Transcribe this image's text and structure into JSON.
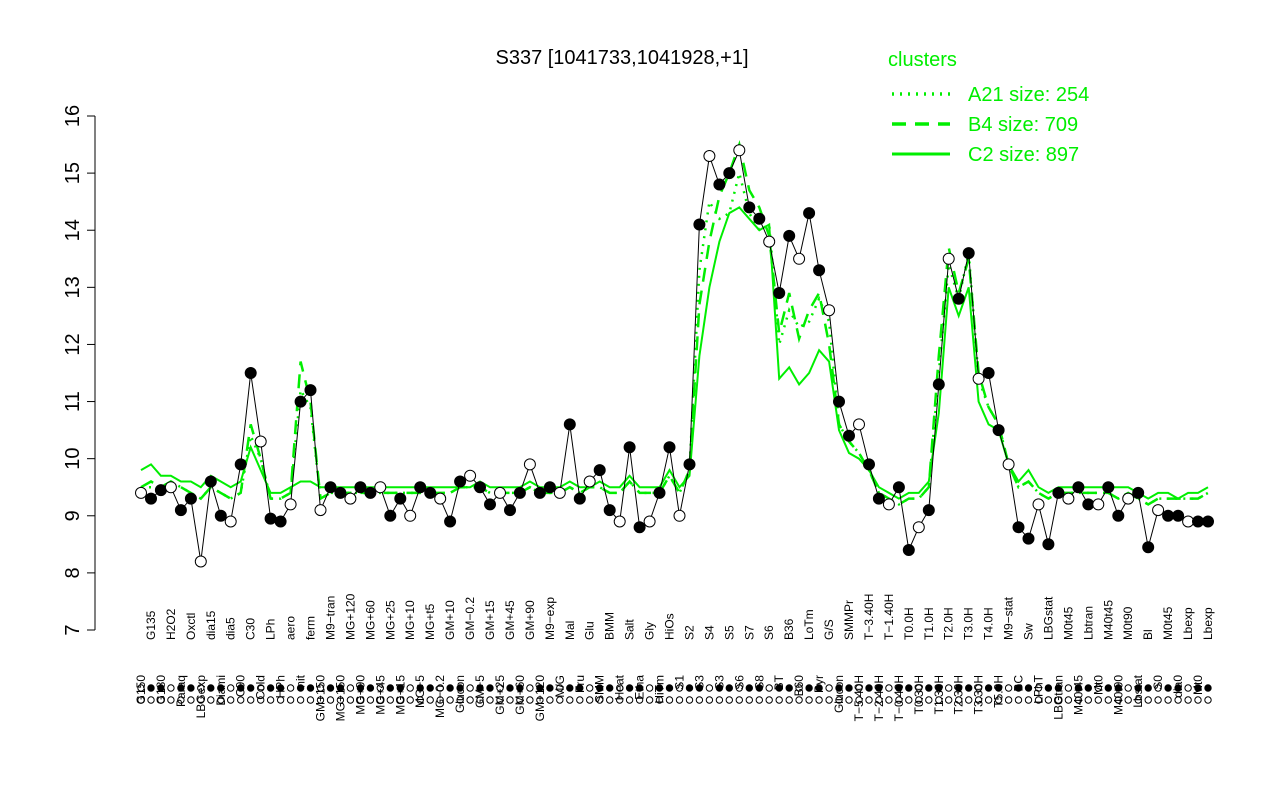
{
  "chart_data": {
    "type": "line",
    "title": "S337 [1041733,1041928,+1]",
    "xlabel": "",
    "ylabel": "",
    "ylim": [
      7,
      16
    ],
    "yticks": [
      7,
      8,
      9,
      10,
      11,
      12,
      13,
      14,
      15,
      16
    ],
    "legend": {
      "title": "clusters",
      "placement": "top-right",
      "entries": [
        {
          "label": "A21 size: 254",
          "style": "dotted",
          "color": "#00ee00"
        },
        {
          "label": "B4 size: 709",
          "style": "dashed",
          "color": "#00ee00"
        },
        {
          "label": "C2 size: 897",
          "style": "solid",
          "color": "#00ee00"
        }
      ]
    },
    "x_labels": [
      {
        "x": 1,
        "label": "G150"
      },
      {
        "x": 2,
        "label": "G135"
      },
      {
        "x": 3,
        "label": "G180"
      },
      {
        "x": 4,
        "label": "H2O2"
      },
      {
        "x": 5,
        "label": "Paraq"
      },
      {
        "x": 6,
        "label": "Oxctl"
      },
      {
        "x": 7,
        "label": "LBGexp"
      },
      {
        "x": 8,
        "label": "dia15"
      },
      {
        "x": 9,
        "label": "Diami"
      },
      {
        "x": 10,
        "label": "dia5"
      },
      {
        "x": 11,
        "label": "C90"
      },
      {
        "x": 12,
        "label": "C30"
      },
      {
        "x": 13,
        "label": "Cold"
      },
      {
        "x": 14,
        "label": "LPh"
      },
      {
        "x": 15,
        "label": "HPh"
      },
      {
        "x": 16,
        "label": "aero"
      },
      {
        "x": 17,
        "label": "nit"
      },
      {
        "x": 18,
        "label": "ferm"
      },
      {
        "x": 19,
        "label": "GM+150"
      },
      {
        "x": 20,
        "label": "M9−tran"
      },
      {
        "x": 21,
        "label": "MG+150"
      },
      {
        "x": 22,
        "label": "MG+120"
      },
      {
        "x": 23,
        "label": "MG+90"
      },
      {
        "x": 24,
        "label": "MG+60"
      },
      {
        "x": 25,
        "label": "MG+45"
      },
      {
        "x": 26,
        "label": "MG+25"
      },
      {
        "x": 27,
        "label": "MG+15"
      },
      {
        "x": 28,
        "label": "MG+10"
      },
      {
        "x": 29,
        "label": "MG+5"
      },
      {
        "x": 30,
        "label": "MG+t5"
      },
      {
        "x": 31,
        "label": "MG−0.2"
      },
      {
        "x": 32,
        "label": "GM+10"
      },
      {
        "x": 33,
        "label": "Glucon"
      },
      {
        "x": 34,
        "label": "GM−0.2"
      },
      {
        "x": 35,
        "label": "GM+5"
      },
      {
        "x": 36,
        "label": "GM+15"
      },
      {
        "x": 37,
        "label": "GM+25"
      },
      {
        "x": 38,
        "label": "GM+45"
      },
      {
        "x": 39,
        "label": "GM+60"
      },
      {
        "x": 40,
        "label": "GM+90"
      },
      {
        "x": 41,
        "label": "GM+120"
      },
      {
        "x": 42,
        "label": "M9−exp"
      },
      {
        "x": 43,
        "label": "M/G"
      },
      {
        "x": 44,
        "label": "Mal"
      },
      {
        "x": 45,
        "label": "Fru"
      },
      {
        "x": 46,
        "label": "Glu"
      },
      {
        "x": 47,
        "label": "SMM"
      },
      {
        "x": 48,
        "label": "BMM"
      },
      {
        "x": 49,
        "label": "Heat"
      },
      {
        "x": 50,
        "label": "Salt"
      },
      {
        "x": 51,
        "label": "Etha"
      },
      {
        "x": 52,
        "label": "Gly"
      },
      {
        "x": 53,
        "label": "HiTm"
      },
      {
        "x": 54,
        "label": "HiOs"
      },
      {
        "x": 55,
        "label": "S1"
      },
      {
        "x": 56,
        "label": "S2"
      },
      {
        "x": 57,
        "label": "S3"
      },
      {
        "x": 58,
        "label": "S4"
      },
      {
        "x": 59,
        "label": "S3"
      },
      {
        "x": 60,
        "label": "S5"
      },
      {
        "x": 61,
        "label": "S6"
      },
      {
        "x": 62,
        "label": "S7"
      },
      {
        "x": 63,
        "label": "S8"
      },
      {
        "x": 64,
        "label": "S6"
      },
      {
        "x": 65,
        "label": "BT"
      },
      {
        "x": 66,
        "label": "B36"
      },
      {
        "x": 67,
        "label": "B60"
      },
      {
        "x": 68,
        "label": "LoTm"
      },
      {
        "x": 69,
        "label": "Pyr"
      },
      {
        "x": 70,
        "label": "G/S"
      },
      {
        "x": 71,
        "label": "Glucon"
      },
      {
        "x": 72,
        "label": "SMMPr"
      },
      {
        "x": 73,
        "label": "T−5.40H"
      },
      {
        "x": 74,
        "label": "T−3.40H"
      },
      {
        "x": 75,
        "label": "T−2.40H"
      },
      {
        "x": 76,
        "label": "T−1.40H"
      },
      {
        "x": 77,
        "label": "T−0.40H"
      },
      {
        "x": 78,
        "label": "T0.0H"
      },
      {
        "x": 79,
        "label": "T0.30H"
      },
      {
        "x": 80,
        "label": "T1.0H"
      },
      {
        "x": 81,
        "label": "T1.30H"
      },
      {
        "x": 82,
        "label": "T2.0H"
      },
      {
        "x": 83,
        "label": "T2.30H"
      },
      {
        "x": 84,
        "label": "T3.0H"
      },
      {
        "x": 85,
        "label": "T3.30H"
      },
      {
        "x": 86,
        "label": "T4.0H"
      },
      {
        "x": 87,
        "label": "T5.0H"
      },
      {
        "x": 88,
        "label": "M9−stat"
      },
      {
        "x": 89,
        "label": "BC"
      },
      {
        "x": 90,
        "label": "Sw"
      },
      {
        "x": 91,
        "label": "LPhT"
      },
      {
        "x": 92,
        "label": "LBGstat"
      },
      {
        "x": 93,
        "label": "LBGtran"
      },
      {
        "x": 94,
        "label": "M0t45"
      },
      {
        "x": 95,
        "label": "M40t45"
      },
      {
        "x": 96,
        "label": "Lbtran"
      },
      {
        "x": 97,
        "label": "Mt0"
      },
      {
        "x": 98,
        "label": "M40t45"
      },
      {
        "x": 99,
        "label": "M40t90"
      },
      {
        "x": 100,
        "label": "M0t90"
      },
      {
        "x": 101,
        "label": "Lbstat"
      },
      {
        "x": 102,
        "label": "Bl"
      },
      {
        "x": 103,
        "label": "S0"
      },
      {
        "x": 104,
        "label": "M0t45"
      },
      {
        "x": 105,
        "label": "dia0"
      },
      {
        "x": 106,
        "label": "Lbexp"
      },
      {
        "x": 107,
        "label": "Mt0"
      },
      {
        "x": 108,
        "label": "Lbexp"
      }
    ],
    "series": [
      {
        "style": "points",
        "values": [
          9.4,
          9.3,
          9.45,
          9.5,
          9.1,
          9.3,
          8.2,
          9.6,
          9.0,
          8.9,
          9.9,
          11.5,
          10.3,
          8.95,
          8.9,
          9.2,
          11.0,
          11.2,
          9.1,
          9.5,
          9.4,
          9.3,
          9.5,
          9.4,
          9.5,
          9.0,
          9.3,
          9.0,
          9.5,
          9.4,
          9.3,
          8.9,
          9.6,
          9.7,
          9.5,
          9.2,
          9.4,
          9.1,
          9.4,
          9.9,
          9.4,
          9.5,
          9.4,
          10.6,
          9.3,
          9.6,
          9.8,
          9.1,
          8.9,
          10.2,
          8.8,
          8.9,
          9.4,
          10.2,
          9.0,
          9.9,
          14.1,
          15.3,
          14.8,
          15.0,
          15.4,
          14.4,
          14.2,
          13.8,
          12.9,
          13.9,
          13.5,
          14.3,
          13.3,
          12.6,
          11.0,
          10.4,
          10.6,
          9.9,
          9.3,
          9.2,
          9.5,
          8.4,
          8.8,
          9.1,
          11.3,
          13.5,
          12.8,
          13.6,
          11.4,
          11.5,
          10.5,
          9.9,
          8.8,
          8.6,
          9.2,
          8.5,
          9.4,
          9.3,
          9.5,
          9.2,
          9.2,
          9.5,
          9.0,
          9.3,
          9.4,
          8.45,
          9.1,
          9.0,
          9.0,
          8.9,
          8.9,
          8.9
        ]
      },
      {
        "name": "C2 size: 897",
        "style": "solid",
        "values": [
          9.8,
          9.9,
          9.7,
          9.7,
          9.6,
          9.6,
          9.5,
          9.7,
          9.6,
          9.5,
          9.6,
          10.2,
          9.8,
          9.4,
          9.4,
          9.5,
          9.6,
          9.6,
          9.5,
          9.5,
          9.5,
          9.5,
          9.5,
          9.5,
          9.5,
          9.5,
          9.5,
          9.5,
          9.5,
          9.5,
          9.5,
          9.5,
          9.5,
          9.5,
          9.6,
          9.5,
          9.5,
          9.5,
          9.5,
          9.6,
          9.5,
          9.5,
          9.5,
          9.6,
          9.5,
          9.5,
          9.6,
          9.5,
          9.5,
          9.7,
          9.5,
          9.5,
          9.5,
          9.8,
          9.5,
          9.7,
          11.8,
          13.0,
          13.8,
          14.3,
          14.4,
          14.2,
          14.0,
          14.1,
          11.4,
          11.6,
          11.3,
          11.5,
          11.9,
          11.7,
          10.5,
          10.1,
          10.0,
          9.8,
          9.5,
          9.4,
          9.3,
          9.4,
          9.4,
          9.6,
          10.8,
          13.0,
          12.5,
          13.0,
          11.0,
          10.6,
          10.5,
          9.9,
          9.6,
          9.8,
          9.5,
          9.4,
          9.5,
          9.5,
          9.5,
          9.5,
          9.5,
          9.5,
          9.5,
          9.5,
          9.4,
          9.3,
          9.4,
          9.4,
          9.3,
          9.4,
          9.4,
          9.5
        ]
      },
      {
        "name": "B4 size: 709",
        "style": "dashed",
        "values": [
          9.5,
          9.6,
          9.5,
          9.6,
          9.5,
          9.4,
          9.3,
          9.5,
          9.4,
          9.3,
          9.4,
          10.6,
          10.0,
          9.3,
          9.3,
          9.4,
          11.7,
          11.0,
          9.3,
          9.4,
          9.4,
          9.4,
          9.4,
          9.4,
          9.4,
          9.4,
          9.4,
          9.4,
          9.4,
          9.4,
          9.4,
          9.4,
          9.5,
          9.5,
          9.5,
          9.4,
          9.4,
          9.4,
          9.4,
          9.5,
          9.4,
          9.4,
          9.4,
          9.5,
          9.4,
          9.5,
          9.5,
          9.4,
          9.4,
          9.6,
          9.4,
          9.4,
          9.4,
          9.7,
          9.4,
          9.8,
          12.7,
          13.8,
          14.6,
          15.0,
          15.5,
          14.7,
          14.4,
          13.9,
          12.2,
          12.9,
          12.1,
          12.6,
          12.9,
          12.0,
          10.6,
          10.3,
          10.1,
          9.8,
          9.4,
          9.3,
          9.2,
          9.3,
          9.3,
          9.5,
          11.8,
          13.7,
          12.9,
          13.5,
          11.5,
          10.9,
          10.6,
          9.9,
          9.5,
          9.6,
          9.4,
          9.3,
          9.4,
          9.4,
          9.4,
          9.4,
          9.4,
          9.4,
          9.3,
          9.4,
          9.3,
          9.2,
          9.3,
          9.3,
          9.3,
          9.3,
          9.3,
          9.4
        ]
      },
      {
        "name": "A21 size: 254",
        "style": "dotted",
        "values": [
          9.5,
          9.5,
          9.5,
          9.6,
          9.5,
          9.4,
          9.3,
          9.5,
          9.4,
          9.3,
          9.4,
          10.4,
          10.0,
          9.3,
          9.3,
          9.4,
          11.2,
          10.9,
          9.3,
          9.4,
          9.4,
          9.4,
          9.4,
          9.4,
          9.4,
          9.4,
          9.4,
          9.4,
          9.4,
          9.4,
          9.4,
          9.4,
          9.5,
          9.5,
          9.5,
          9.4,
          9.4,
          9.4,
          9.4,
          9.5,
          9.4,
          9.4,
          9.4,
          9.5,
          9.4,
          9.5,
          9.5,
          9.4,
          9.4,
          9.6,
          9.4,
          9.4,
          9.4,
          9.7,
          9.4,
          9.8,
          13.3,
          14.5,
          14.2,
          14.3,
          15.0,
          14.3,
          14.0,
          14.1,
          12.0,
          12.6,
          12.3,
          12.4,
          12.8,
          12.4,
          10.6,
          10.3,
          10.1,
          9.8,
          9.4,
          9.3,
          9.2,
          9.3,
          9.3,
          9.5,
          11.5,
          13.4,
          12.8,
          13.6,
          11.4,
          10.9,
          10.6,
          9.9,
          9.5,
          9.6,
          9.4,
          9.3,
          9.4,
          9.4,
          9.4,
          9.4,
          9.4,
          9.4,
          9.3,
          9.4,
          9.3,
          9.2,
          9.3,
          9.3,
          9.3,
          9.3,
          9.3,
          9.4
        ]
      }
    ]
  }
}
